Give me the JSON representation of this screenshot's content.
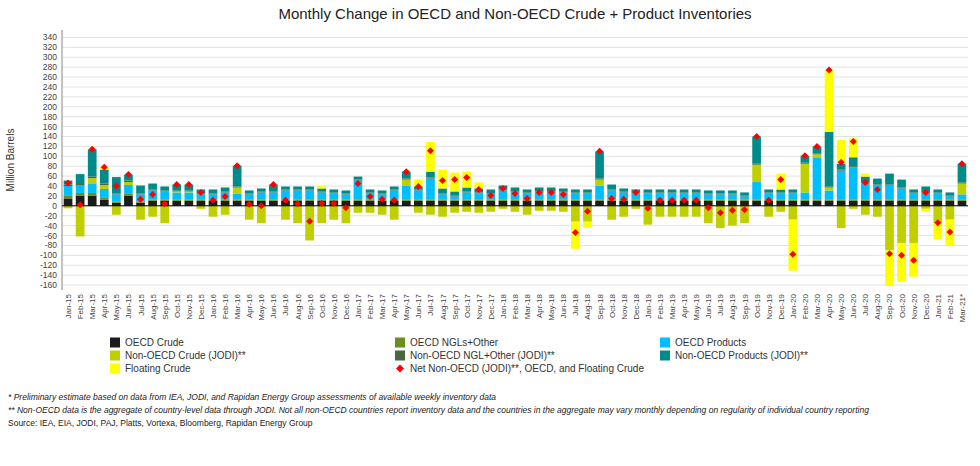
{
  "chart_data": {
    "type": "bar",
    "stacked": true,
    "title": "Monthly Change in OECD and Non-OECD Crude + Product Inventories",
    "ylabel": "Million Barrels",
    "ylim": [
      -170,
      355
    ],
    "yticks": [
      -160,
      -140,
      -120,
      -100,
      -80,
      -60,
      -40,
      -20,
      0,
      20,
      40,
      60,
      80,
      100,
      120,
      140,
      160,
      180,
      200,
      220,
      240,
      260,
      280,
      300,
      320,
      340
    ],
    "grid": true,
    "legend": "bottom",
    "annotations": [
      "* Preliminary estimate based on data from IEA, JODI, and Rapidan Energy Group assessments of available weekly inventory data",
      "** Non-OECD data is the aggregate of country-level data through JODI. Not all non-OECD countries report inventory data and the countries in the aggregate may vary monthly depending on regularity of individual country reporting",
      "Source: IEA, EIA, JODI, PAJ, Platts, Vortexa, Bloomberg, Rapidan Energy Group"
    ],
    "categories": [
      "Jan-15",
      "Feb-15",
      "Mar-15",
      "Apr-15",
      "May-15",
      "Jun-15",
      "Jul-15",
      "Aug-15",
      "Sep-15",
      "Oct-15",
      "Nov-15",
      "Dec-15",
      "Jan-16",
      "Feb-16",
      "Mar-16",
      "Apr-16",
      "May-16",
      "Jun-16",
      "Jul-16",
      "Aug-16",
      "Sep-16",
      "Oct-16",
      "Nov-16",
      "Dec-16",
      "Jan-17",
      "Feb-17",
      "Mar-17",
      "Apr-17",
      "May-17",
      "Jun-17",
      "Jul-17",
      "Aug-17",
      "Sep-17",
      "Oct-17",
      "Nov-17",
      "Dec-17",
      "Jan-18",
      "Feb-18",
      "Mar-18",
      "Apr-18",
      "May-18",
      "Jun-18",
      "Jul-18",
      "Aug-18",
      "Sep-18",
      "Oct-18",
      "Nov-18",
      "Dec-18",
      "Jan-19",
      "Feb-19",
      "Mar-19",
      "Apr-19",
      "May-19",
      "Jun-19",
      "Jul-19",
      "Aug-19",
      "Sep-19",
      "Oct-19",
      "Nov-19",
      "Dec-19",
      "Jan-20",
      "Feb-20",
      "Mar-20",
      "Apr-20",
      "May-20",
      "Jun-20",
      "Jul-20",
      "Aug-20",
      "Sep-20",
      "Oct-20",
      "Nov-20",
      "Dec-20",
      "Jan-21",
      "Feb-21",
      "Mar-21*"
    ],
    "series": [
      {
        "name": "OECD Crude",
        "color": "#1c1c1c",
        "type": "bar",
        "values": [
          15,
          20,
          20,
          12,
          6,
          20,
          6,
          10,
          10,
          10,
          10,
          10,
          10,
          10,
          10,
          10,
          10,
          10,
          10,
          10,
          10,
          10,
          10,
          10,
          10,
          10,
          10,
          10,
          10,
          10,
          10,
          10,
          10,
          10,
          10,
          10,
          10,
          10,
          10,
          10,
          10,
          10,
          10,
          10,
          10,
          10,
          10,
          10,
          10,
          10,
          10,
          10,
          10,
          10,
          10,
          10,
          10,
          10,
          10,
          10,
          10,
          10,
          10,
          10,
          10,
          10,
          10,
          10,
          10,
          10,
          10,
          10,
          10,
          10,
          10
        ]
      },
      {
        "name": "OECD NGLs+Other",
        "color": "#6B8E23",
        "type": "bar",
        "values": [
          5,
          6,
          6,
          4,
          2,
          4,
          2,
          3,
          3,
          3,
          3,
          3,
          3,
          3,
          3,
          3,
          3,
          3,
          3,
          3,
          3,
          3,
          3,
          3,
          3,
          3,
          3,
          3,
          3,
          3,
          3,
          3,
          3,
          3,
          3,
          3,
          3,
          3,
          3,
          3,
          3,
          3,
          3,
          3,
          3,
          3,
          3,
          3,
          3,
          3,
          3,
          3,
          3,
          3,
          3,
          3,
          3,
          3,
          3,
          3,
          3,
          3,
          3,
          3,
          3,
          3,
          3,
          3,
          3,
          3,
          3,
          3,
          3,
          3,
          3
        ]
      },
      {
        "name": "OECD Products",
        "color": "#00BFFF",
        "type": "bar",
        "values": [
          20,
          15,
          18,
          18,
          15,
          18,
          15,
          18,
          16,
          14,
          14,
          10,
          10,
          14,
          12,
          10,
          14,
          14,
          18,
          18,
          18,
          14,
          12,
          10,
          38,
          12,
          10,
          18,
          28,
          18,
          42,
          10,
          6,
          14,
          12,
          10,
          18,
          14,
          12,
          14,
          14,
          14,
          12,
          12,
          28,
          18,
          14,
          12,
          12,
          12,
          12,
          12,
          12,
          10,
          10,
          10,
          6,
          35,
          12,
          12,
          12,
          14,
          85,
          18,
          58,
          65,
          32,
          28,
          28,
          22,
          12,
          12,
          12,
          6,
          10
        ]
      },
      {
        "name": "Non-OECD Crude (JODI)**",
        "color": "#BFCF00",
        "type": "bar",
        "values": [
          -5,
          -62,
          12,
          8,
          -18,
          6,
          -28,
          -22,
          -35,
          2,
          2,
          -6,
          -22,
          -18,
          12,
          -28,
          -35,
          0,
          -28,
          -35,
          -70,
          -35,
          -28,
          -35,
          -14,
          -14,
          -18,
          -28,
          12,
          -14,
          -18,
          -22,
          -14,
          -12,
          -14,
          -12,
          -6,
          -12,
          -18,
          -10,
          -10,
          -12,
          -32,
          -32,
          12,
          -28,
          -22,
          -6,
          -38,
          -22,
          -22,
          -22,
          -22,
          -35,
          -45,
          -40,
          -35,
          35,
          -22,
          -12,
          -28,
          58,
          6,
          6,
          -45,
          -6,
          -18,
          -22,
          -90,
          -75,
          -75,
          -6,
          -35,
          -28,
          22
        ]
      },
      {
        "name": "Non-OECD NGL+Other (JODI)**",
        "color": "#4a6741",
        "type": "bar",
        "values": [
          3,
          3,
          3,
          3,
          2,
          3,
          2,
          2,
          2,
          2,
          2,
          2,
          2,
          2,
          2,
          2,
          2,
          2,
          2,
          2,
          2,
          2,
          2,
          2,
          2,
          2,
          2,
          2,
          2,
          2,
          2,
          2,
          2,
          2,
          2,
          2,
          2,
          2,
          2,
          2,
          2,
          2,
          2,
          2,
          2,
          2,
          2,
          2,
          2,
          2,
          2,
          2,
          2,
          2,
          2,
          2,
          2,
          2,
          2,
          2,
          2,
          2,
          2,
          2,
          2,
          2,
          2,
          2,
          2,
          2,
          2,
          2,
          2,
          2,
          2
        ]
      },
      {
        "name": "Non-OECD Products (JODI)**",
        "color": "#008B8B",
        "type": "bar",
        "values": [
          8,
          20,
          55,
          28,
          33,
          12,
          16,
          12,
          8,
          12,
          12,
          8,
          8,
          8,
          42,
          6,
          6,
          14,
          6,
          6,
          6,
          6,
          6,
          6,
          6,
          6,
          6,
          6,
          14,
          6,
          12,
          10,
          8,
          8,
          8,
          8,
          8,
          8,
          6,
          8,
          8,
          6,
          6,
          6,
          55,
          10,
          6,
          6,
          6,
          6,
          6,
          6,
          6,
          6,
          6,
          6,
          6,
          55,
          6,
          6,
          6,
          14,
          14,
          110,
          12,
          18,
          12,
          12,
          22,
          16,
          6,
          12,
          6,
          6,
          38
        ]
      },
      {
        "name": "Floating Crude",
        "color": "#FFFF00",
        "type": "bar",
        "values": [
          0,
          0,
          0,
          5,
          0,
          0,
          0,
          0,
          0,
          0,
          0,
          0,
          0,
          0,
          0,
          0,
          0,
          0,
          0,
          0,
          0,
          5,
          0,
          0,
          0,
          0,
          0,
          0,
          0,
          14,
          60,
          38,
          38,
          32,
          12,
          0,
          0,
          0,
          0,
          0,
          0,
          0,
          -55,
          -12,
          0,
          0,
          0,
          0,
          0,
          0,
          0,
          0,
          0,
          0,
          0,
          0,
          0,
          0,
          0,
          32,
          -103,
          0,
          0,
          125,
          48,
          38,
          6,
          0,
          -72,
          -78,
          -68,
          -6,
          -32,
          -52,
          0
        ]
      },
      {
        "name": "Net Non-OECD (JODI)**, OECD, and Floating Crude",
        "color": "#FF0000",
        "type": "scatter",
        "marker": "diamond",
        "values": [
          46,
          2,
          114,
          78,
          40,
          63,
          13,
          23,
          4,
          43,
          43,
          27,
          11,
          19,
          81,
          3,
          0,
          43,
          11,
          4,
          -31,
          5,
          5,
          -4,
          45,
          19,
          13,
          11,
          69,
          39,
          111,
          51,
          53,
          57,
          33,
          21,
          35,
          25,
          15,
          27,
          27,
          23,
          -54,
          -11,
          110,
          15,
          13,
          27,
          -5,
          11,
          11,
          11,
          11,
          -4,
          -14,
          -9,
          -8,
          140,
          11,
          53,
          -98,
          101,
          120,
          274,
          88,
          130,
          47,
          33,
          -97,
          -100,
          -110,
          27,
          -34,
          -53,
          85
        ]
      }
    ]
  }
}
